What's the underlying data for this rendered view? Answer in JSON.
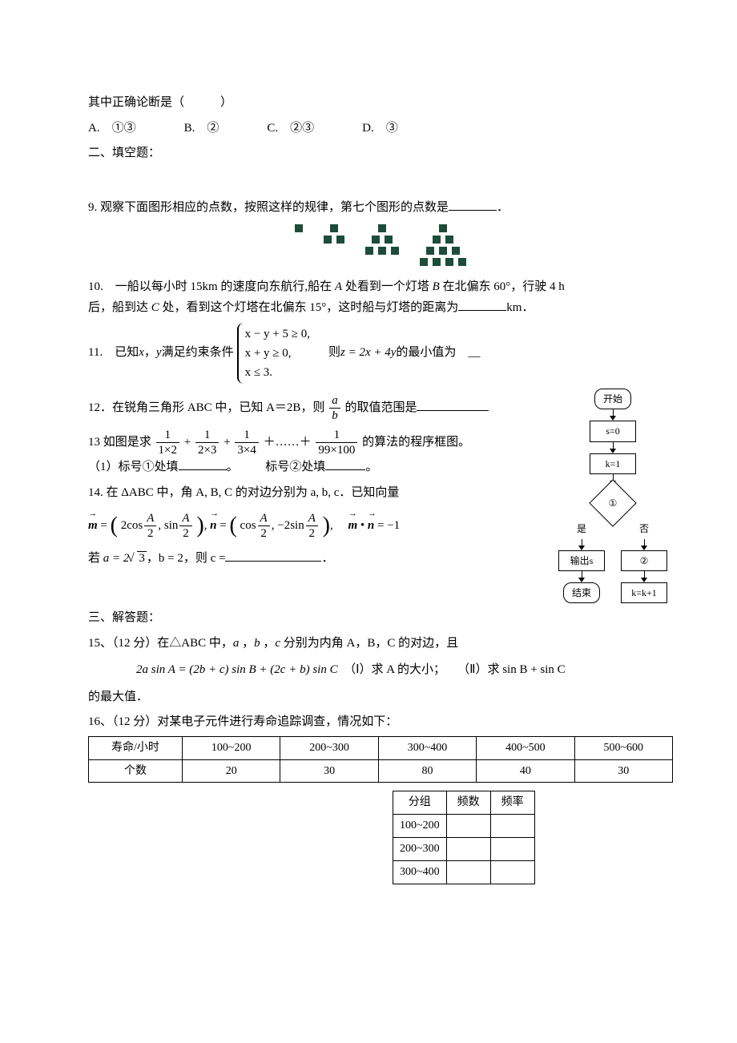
{
  "q_tail": {
    "stem_line": "其中正确论断是（　　　）",
    "optA": "A.　①③",
    "optB": "B.　②",
    "optC": "C.　②③",
    "optD": "D.　③"
  },
  "sec2_title": "二、填空题：",
  "q9": {
    "text": "9. 观察下面图形相应的点数，按照这样的规律，第七个图形的点数是",
    "period": "．",
    "pyramids": [
      [
        1
      ],
      [
        1,
        2
      ],
      [
        1,
        2,
        3
      ],
      [
        1,
        2,
        3,
        4
      ]
    ]
  },
  "q10": {
    "line1_a": "10.　一船以每小时 15km 的速度向东航行,船在 ",
    "line1_b": " 处看到一个灯塔 ",
    "line1_c": " 在北偏东 60°，行驶 4 h",
    "A": "A",
    "B": "B",
    "line2_a": "后，船到达 ",
    "C": "C",
    "line2_b": " 处，看到这个灯塔在北偏东 15°，这时船与灯塔的距离为",
    "unit": "km．"
  },
  "q11": {
    "pre": "11.　已知 ",
    "x": "x",
    "mid1": " ，",
    "y": "y",
    "mid2": " 满足约束条件 ",
    "c1": "x − y + 5 ≥ 0,",
    "c2": "x + y ≥ 0,",
    "c3": "x ≤ 3.",
    "post1": "　则 ",
    "expr": "z = 2x + 4y",
    "post2": " 的最小值为　__"
  },
  "q12": {
    "pre": "12．在锐角三角形 ABC 中，已知 A＝2B，则 ",
    "num": "a",
    "den": "b",
    "post": " 的取值范围是"
  },
  "q13": {
    "pre": "13 如图是求 ",
    "t1n": "1",
    "t1d": "1×2",
    "t2n": "1",
    "t2d": "2×3",
    "t3n": "1",
    "t3d": "3×4",
    "dots": "＋……＋",
    "t4n": "1",
    "t4d": "99×100",
    "post": " 的算法的程序框图。",
    "sub1a": "（1）标号①处填",
    "sub1b": "。",
    "sub2a": "标号②处填",
    "sub2b": "。"
  },
  "q14": {
    "line1": "14. 在 ΔABC 中，角 A, B, C 的对边分别为 a, b, c．已知向量",
    "m": "m",
    "n": "n",
    "eq": " = ",
    "two": "2",
    "cos": "cos",
    "sin": "sin",
    "A": "A",
    "half": "2",
    "comma": ", ",
    "neg2": "−2",
    "dot_eq": " = −1",
    "given_a_pre": "若 ",
    "a_eq": "a = 2",
    "rad": "3",
    "b_eq": "，b = 2，则 c =",
    "period": "．"
  },
  "flowchart": {
    "start": "开始",
    "s0": "s=0",
    "k1": "k=1",
    "cond": "①",
    "yes": "是",
    "no": "否",
    "out": "输出s",
    "upd": "②",
    "end": "结束",
    "inc": "k=k+1"
  },
  "sec3_title": "三、解答题：",
  "q15": {
    "head": "15、（12 分）在△ABC 中，",
    "a": "a",
    "b": "b",
    "c": "c",
    "mid": " 分别为内角 A，B，C 的对边，且",
    "eq": "2a sin A = (2b + c) sin B + (2c + b) sin C",
    "p1": "（Ⅰ）求 A 的大小；",
    "p2": "（Ⅱ）求 sin B + sin C",
    "tail": "的最大值．"
  },
  "q16": {
    "head": "16、（12 分）对某电子元件进行寿命追踪调查，情况如下：",
    "tbl1": {
      "r1": [
        "寿命/小时",
        "100~200",
        "200~300",
        "300~400",
        "400~500",
        "500~600"
      ],
      "r2": [
        "个数",
        "20",
        "30",
        "80",
        "40",
        "30"
      ]
    },
    "tbl2": {
      "head": [
        "分组",
        "频数",
        "频率"
      ],
      "rows": [
        "100~200",
        "200~300",
        "300~400"
      ]
    }
  },
  "style": {
    "accent_sq_color": "#1d4d3a",
    "font_base_pt": 15,
    "bg": "#ffffff"
  }
}
